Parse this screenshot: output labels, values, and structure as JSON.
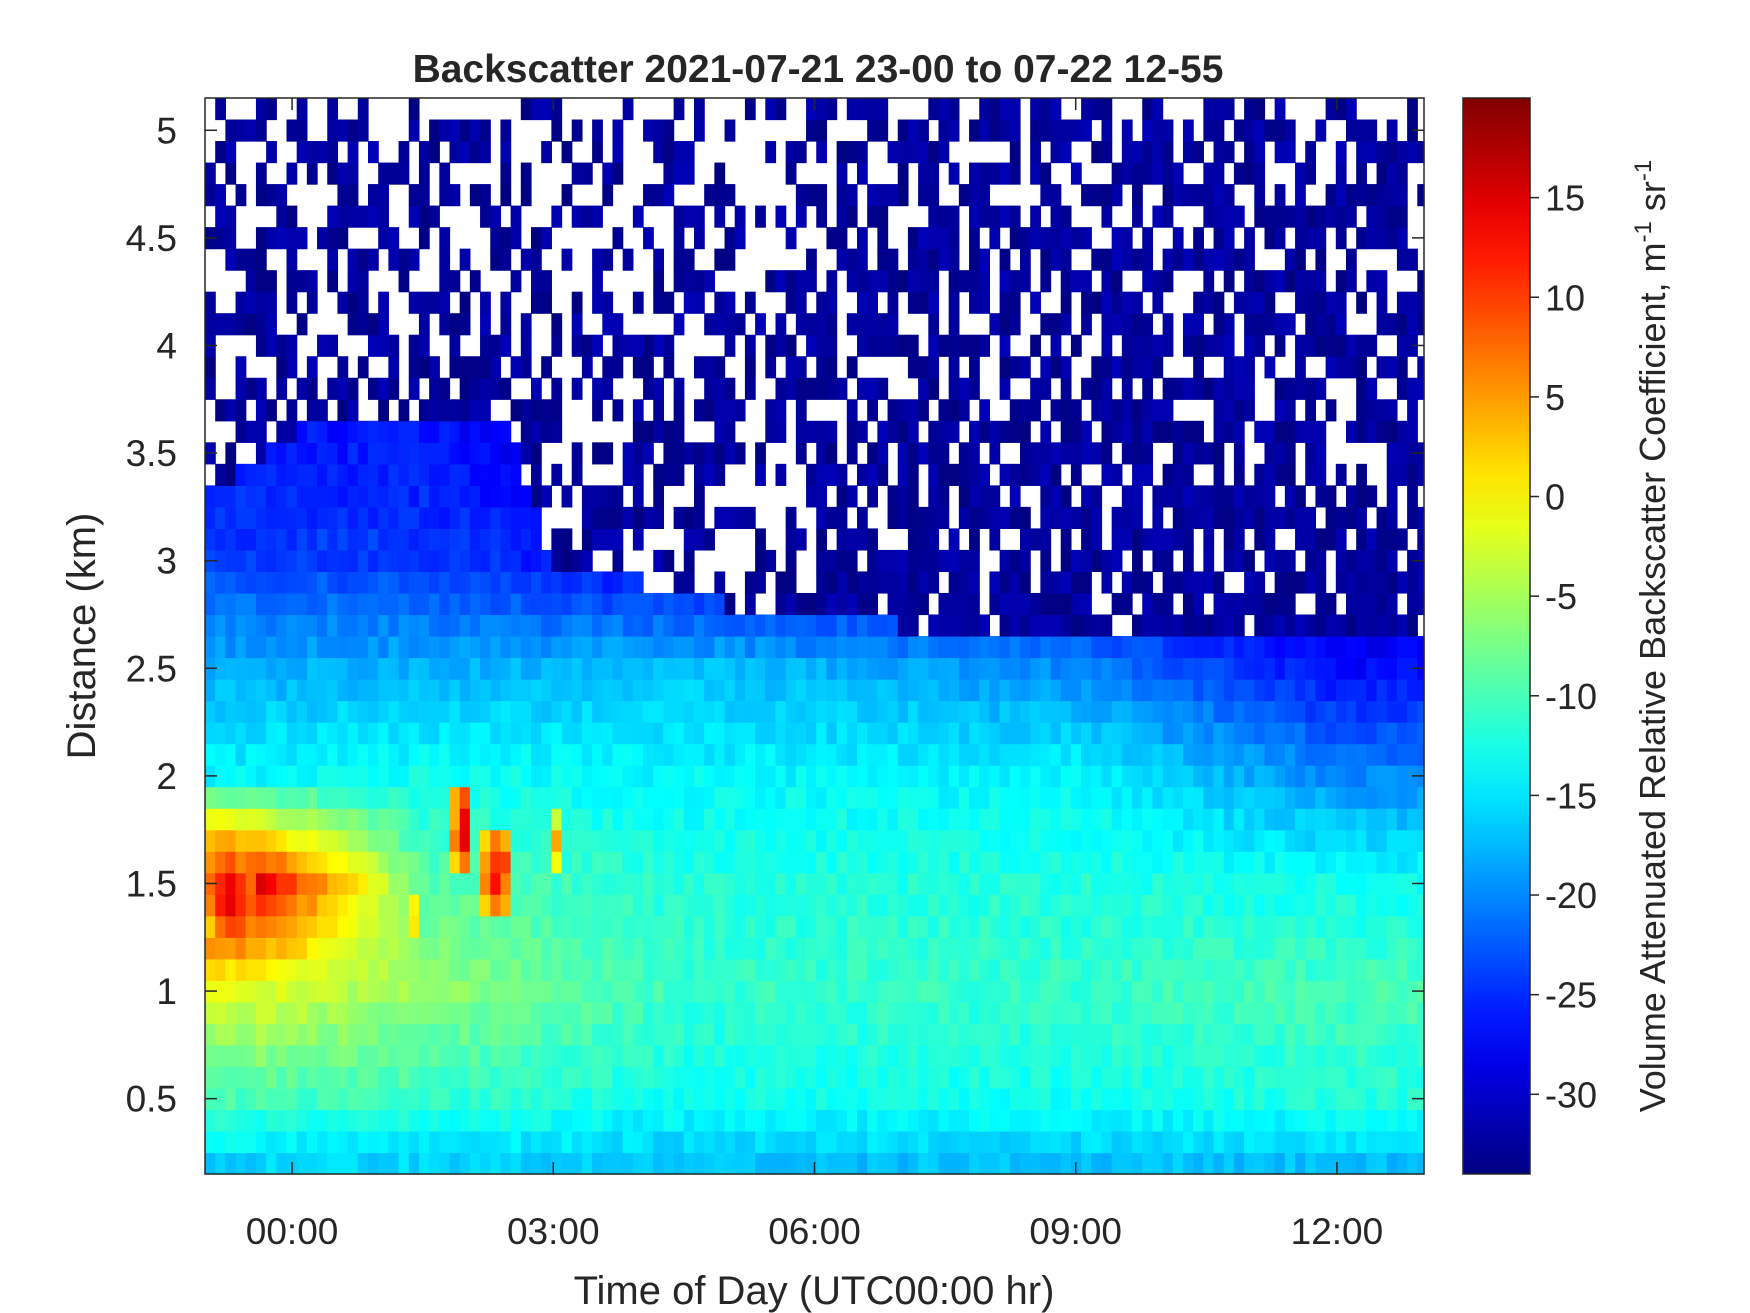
{
  "chart_data": {
    "type": "heatmap",
    "title": "Backscatter 2021-07-21 23-00 to 07-22 12-55",
    "xlabel": "Time of Day (UTC00:00 hr)",
    "ylabel": "Distance (km)",
    "colorbar_label": "Volume Attenuated Relative Backscatter Coefficient, m",
    "colorbar_label_sup1": "-1",
    "colorbar_label_mid": " sr",
    "colorbar_label_sup2": "-1",
    "colormap": "jet",
    "x_units": "hours relative to 2021-07-22 00:00 UTC",
    "xlim": [
      -1.0,
      13.0
    ],
    "ylim": [
      0.15,
      5.15
    ],
    "clim": [
      -34,
      20
    ],
    "x_ticks": [
      0,
      3,
      6,
      9,
      12
    ],
    "x_tick_labels": [
      "00:00",
      "03:00",
      "06:00",
      "09:00",
      "12:00"
    ],
    "y_ticks": [
      0.5,
      1,
      1.5,
      2,
      2.5,
      3,
      3.5,
      4,
      4.5,
      5
    ],
    "y_tick_labels": [
      "0.5",
      "1",
      "1.5",
      "2",
      "2.5",
      "3",
      "3.5",
      "4",
      "4.5",
      "5"
    ],
    "colorbar_ticks": [
      15,
      10,
      5,
      0,
      -5,
      -10,
      -15,
      -20,
      -25,
      -30
    ],
    "colorbar_tick_labels": [
      "15",
      "10",
      "5",
      "0",
      "-5",
      "-10",
      "-15",
      "-20",
      "-25",
      "-30"
    ],
    "grid": false,
    "nodata_color": "#ffffff",
    "grid_resolution": {
      "time_step_hr": 0.117,
      "range_step_km": 0.1
    },
    "profiles": {
      "description": "approximate backscatter (colorbar units) vs distance, at sampled times",
      "distance_km": [
        0.2,
        0.5,
        1.0,
        1.5,
        2.0,
        2.5,
        3.0
      ],
      "at_time_hr": {
        "-0.5": [
          -16,
          -10,
          -2,
          16,
          -14,
          -18,
          -24
        ],
        "1.5": [
          -16,
          -11,
          -6,
          -9,
          -13,
          -18,
          -24
        ],
        "4.5": [
          -17,
          -13,
          -11,
          -12,
          -14,
          -17,
          -28
        ],
        "9.0": [
          -17,
          -13,
          -11,
          -12,
          -14,
          -20,
          -30
        ],
        "12.0": [
          -17,
          -12,
          -10,
          -13,
          -20,
          -27,
          -31
        ]
      }
    },
    "annotations": {
      "cloud_patches": [
        {
          "time_hr": [
            -0.95,
            -0.4
          ],
          "distance_km": [
            1.25,
            1.65
          ],
          "value_max": 18
        },
        {
          "time_hr": [
            1.85,
            2.1
          ],
          "distance_km": [
            1.55,
            1.95
          ],
          "value_max": 17
        },
        {
          "time_hr": [
            2.2,
            2.5
          ],
          "distance_km": [
            1.35,
            1.75
          ],
          "value_max": 17
        },
        {
          "time_hr": [
            2.95,
            3.05
          ],
          "distance_km": [
            1.6,
            1.8
          ],
          "value_max": 13
        },
        {
          "time_hr": [
            1.3,
            1.4
          ],
          "distance_km": [
            1.25,
            1.45
          ],
          "value_max": 14
        }
      ],
      "noise_boundary_km": [
        {
          "time_hr": -1.0,
          "height": 3.3
        },
        {
          "time_hr": 0.0,
          "height": 3.6
        },
        {
          "time_hr": 2.5,
          "height": 3.6
        },
        {
          "time_hr": 3.0,
          "height": 3.0
        },
        {
          "time_hr": 5.0,
          "height": 2.8
        },
        {
          "time_hr": 9.0,
          "height": 2.6
        },
        {
          "time_hr": 13.0,
          "height": 2.6
        }
      ]
    }
  }
}
